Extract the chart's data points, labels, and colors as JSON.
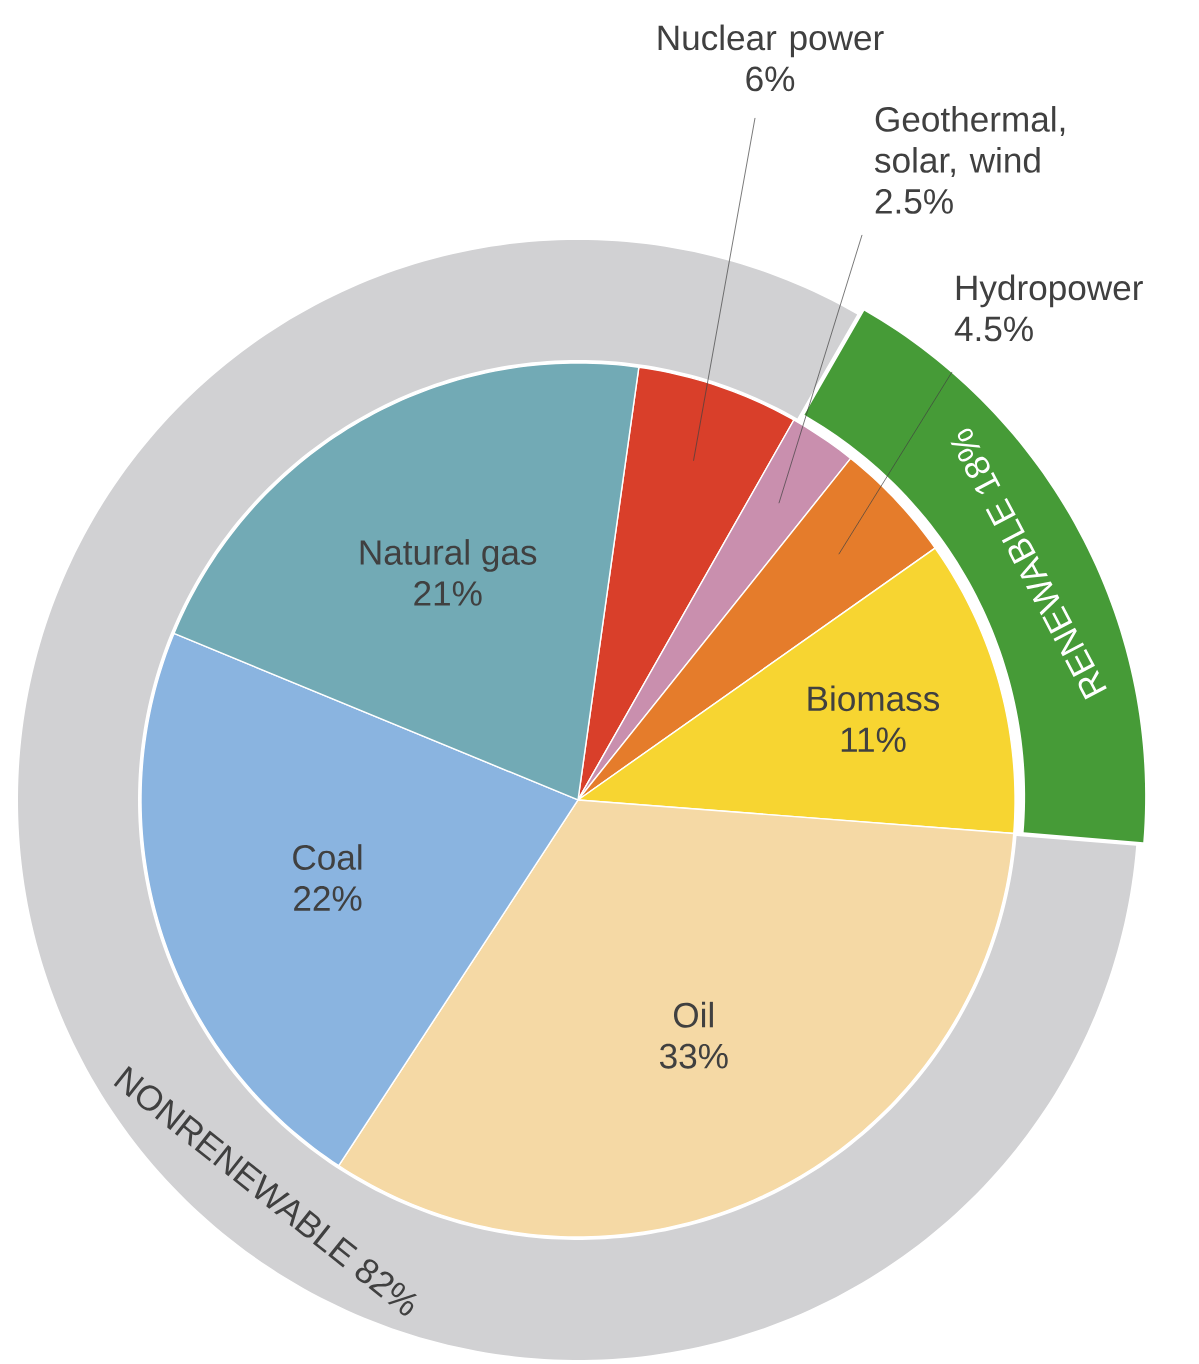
{
  "chart_data": [
    {
      "type": "pie",
      "categories": [
        "Nuclear power",
        "Geothermal, solar, wind",
        "Hydropower",
        "Biomass",
        "Oil",
        "Coal",
        "Natural gas"
      ],
      "values": [
        6,
        2.5,
        4.5,
        11,
        33,
        22,
        21
      ],
      "value_labels": [
        "6%",
        "2.5%",
        "4.5%",
        "11%",
        "33%",
        "22%",
        "21%"
      ],
      "colors": [
        "#d93f2a",
        "#c98fae",
        "#e57c2b",
        "#f7d531",
        "#f5d9a5",
        "#8ab4e0",
        "#72aab5"
      ]
    },
    {
      "type": "donut",
      "categories": [
        "RENEWABLE",
        "NONRENEWABLE"
      ],
      "values": [
        18,
        82
      ],
      "value_labels": [
        "18%",
        "82%"
      ],
      "colors": [
        "#469b37",
        "#d1d1d3"
      ]
    }
  ]
}
